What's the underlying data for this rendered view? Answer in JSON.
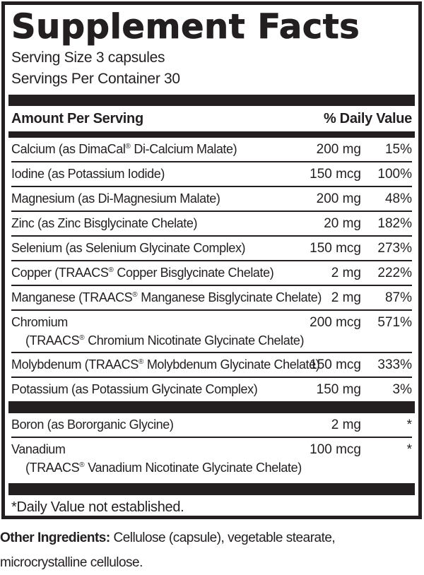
{
  "label": {
    "title": "Supplement Facts",
    "serving_size": "Serving Size 3 capsules",
    "servings_per_container": "Servings Per Container 30",
    "header": {
      "amount_col": "Amount Per Serving",
      "dv_col": "% Daily Value"
    },
    "rows": [
      {
        "name": "Calcium (as DimaCal® Di-Calcium Malate)",
        "amount": "200 mg",
        "dv": "15%"
      },
      {
        "name": "Iodine (as Potassium Iodide)",
        "amount": "150 mcg",
        "dv": "100%"
      },
      {
        "name": "Magnesium (as Di-Magnesium Malate)",
        "amount": "200 mg",
        "dv": "48%"
      },
      {
        "name": "Zinc (as Zinc Bisglycinate Chelate)",
        "amount": "20 mg",
        "dv": "182%"
      },
      {
        "name": "Selenium (as Selenium Glycinate Complex)",
        "amount": "150 mcg",
        "dv": "273%"
      },
      {
        "name": "Copper (TRAACS® Copper Bisglycinate Chelate)",
        "amount": "2 mg",
        "dv": "222%"
      },
      {
        "name": "Manganese (TRAACS® Manganese Bisglycinate Chelate)",
        "amount": "2 mg",
        "dv": "87%"
      },
      {
        "name": "Chromium",
        "name2": "(TRAACS® Chromium Nicotinate Glycinate Chelate)",
        "amount": "200 mcg",
        "dv": "571%"
      },
      {
        "name": "Molybdenum (TRAACS® Molybdenum Glycinate Chelate)",
        "amount": "150 mcg",
        "dv": "333%"
      },
      {
        "name": "Potassium (as Potassium Glycinate Complex)",
        "amount": "150 mg",
        "dv": "3%"
      }
    ],
    "rows_no_dv": [
      {
        "name": "Boron (as Bororganic Glycine)",
        "amount": "2 mg",
        "dv": "*"
      },
      {
        "name": "Vanadium",
        "name2": "(TRAACS® Vanadium Nicotinate Glycinate Chelate)",
        "amount": "100 mcg",
        "dv": "*"
      }
    ],
    "footnote": "*Daily Value not established."
  },
  "other_ingredients": {
    "bold_label": "Other Ingredients:",
    "text": " Cellulose (capsule), vegetable stearate, microcrystalline cellulose."
  },
  "colors": {
    "ink": "#231f20",
    "background": "#ffffff"
  }
}
